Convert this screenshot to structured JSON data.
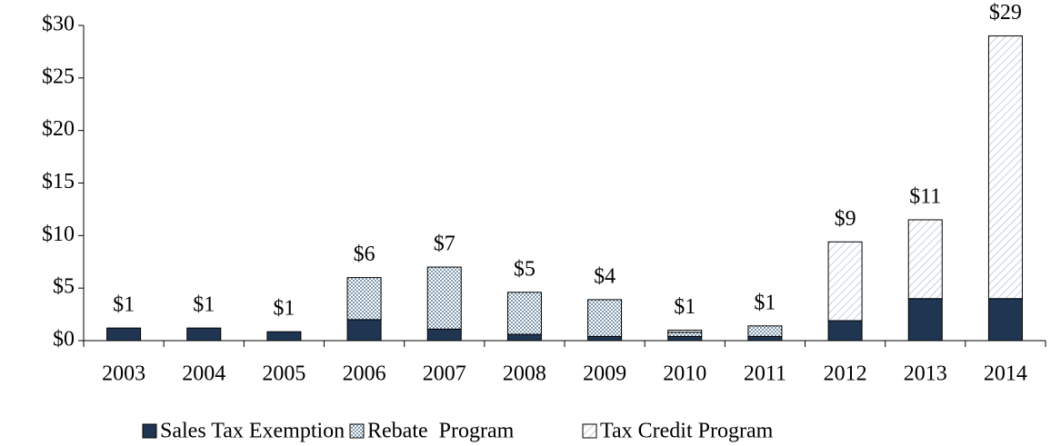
{
  "chart_data": {
    "type": "stacked_bar",
    "categories": [
      "2003",
      "2004",
      "2005",
      "2006",
      "2007",
      "2008",
      "2009",
      "2010",
      "2011",
      "2012",
      "2013",
      "2014"
    ],
    "series": [
      {
        "name": "Sales Tax Exemption",
        "color": "#1f3552",
        "values": [
          1.2,
          1.2,
          0.85,
          2.0,
          1.1,
          0.6,
          0.4,
          0.4,
          0.4,
          1.9,
          4.0,
          4.0
        ]
      },
      {
        "name": "Rebate  Program",
        "color": "#9fb8c8",
        "values": [
          0,
          0,
          0,
          4.0,
          5.9,
          4.0,
          3.5,
          0.4,
          1.0,
          0,
          0,
          0
        ]
      },
      {
        "name": "Tax Credit Program",
        "color": "#c5d6e2",
        "values": [
          0,
          0,
          0,
          0,
          0,
          0,
          0,
          0.2,
          0,
          7.5,
          7.5,
          25.0
        ]
      }
    ],
    "total_labels": [
      "$1",
      "$1",
      "$1",
      "$6",
      "$7",
      "$5",
      "$4",
      "$1",
      "$1",
      "$9",
      "$11",
      "$29"
    ],
    "ylim": [
      0,
      30
    ],
    "yticks": [
      {
        "value": 0,
        "label": "$0"
      },
      {
        "value": 5,
        "label": "$5"
      },
      {
        "value": 10,
        "label": "$10"
      },
      {
        "value": 15,
        "label": "$15"
      },
      {
        "value": 20,
        "label": "$20"
      },
      {
        "value": 25,
        "label": "$25"
      },
      {
        "value": 30,
        "label": "$30"
      }
    ]
  }
}
